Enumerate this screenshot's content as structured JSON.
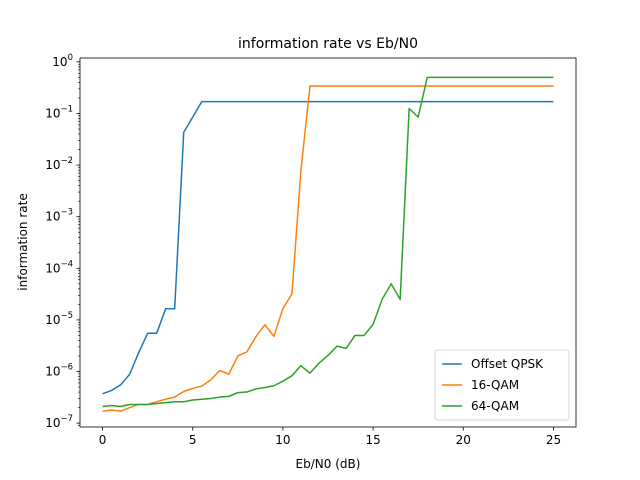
{
  "chart_data": {
    "type": "line",
    "title": "information rate vs Eb/N0",
    "xlabel": "Eb/N0 (dB)",
    "ylabel": "information rate",
    "xlim": [
      -1.25,
      26.25
    ],
    "ylim": [
      1e-07,
      1
    ],
    "yscale": "log",
    "grid": false,
    "legend_position": "bottom-right",
    "x_ticks": [
      0,
      5,
      10,
      15,
      20,
      25
    ],
    "x_tick_labels": [
      "0",
      "5",
      "10",
      "15",
      "20",
      "25"
    ],
    "y_ticks": [
      -7,
      -6,
      -5,
      -4,
      -3,
      -2,
      -1,
      0
    ],
    "y_tick_labels": [
      {
        "base": "10",
        "exp": "−7"
      },
      {
        "base": "10",
        "exp": "−6"
      },
      {
        "base": "10",
        "exp": "−5"
      },
      {
        "base": "10",
        "exp": "−4"
      },
      {
        "base": "10",
        "exp": "−3"
      },
      {
        "base": "10",
        "exp": "−2"
      },
      {
        "base": "10",
        "exp": "−1"
      },
      {
        "base": "10",
        "exp": "0"
      }
    ],
    "series": [
      {
        "name": "Offset QPSK",
        "color": "#1f77b4",
        "x": [
          0,
          0.5,
          1,
          1.5,
          2,
          2.5,
          3,
          3.5,
          4,
          4.5,
          5,
          5.5,
          6,
          6.5,
          7,
          8,
          10,
          12,
          15,
          20,
          25
        ],
        "y": [
          3.7e-07,
          4.3e-07,
          5.5e-07,
          8.8e-07,
          2.3e-06,
          5.5e-06,
          5.5e-06,
          1.65e-05,
          1.65e-05,
          0.043,
          0.085,
          0.17,
          0.17,
          0.17,
          0.17,
          0.17,
          0.17,
          0.17,
          0.17,
          0.17,
          0.17
        ]
      },
      {
        "name": "16-QAM",
        "color": "#ff7f0e",
        "x": [
          0,
          0.5,
          1,
          1.5,
          2,
          2.5,
          3,
          3.5,
          4,
          4.5,
          5,
          5.5,
          6,
          6.5,
          7,
          7.5,
          8,
          8.5,
          9,
          9.5,
          10,
          10.5,
          11,
          11.5,
          12,
          15,
          20,
          25
        ],
        "y": [
          1.7e-07,
          1.8e-07,
          1.7e-07,
          2e-07,
          2.3e-07,
          2.3e-07,
          2.6e-07,
          2.9e-07,
          3.2e-07,
          4.1e-07,
          4.7e-07,
          5.2e-07,
          6.9e-07,
          1.05e-06,
          8.9e-07,
          2e-06,
          2.4e-06,
          4.7e-06,
          8.1e-06,
          4.8e-06,
          1.65e-05,
          3.2e-05,
          0.008,
          0.34,
          0.34,
          0.34,
          0.34,
          0.34
        ]
      },
      {
        "name": "64-QAM",
        "color": "#2ca02c",
        "x": [
          0,
          0.5,
          1,
          1.5,
          2,
          2.5,
          3,
          3.5,
          4,
          4.5,
          5,
          5.5,
          6,
          6.5,
          7,
          7.5,
          8,
          8.5,
          9,
          9.5,
          10,
          10.5,
          11,
          11.5,
          12,
          12.5,
          13,
          13.5,
          14,
          14.5,
          15,
          15.5,
          16,
          16.5,
          17,
          17.5,
          18,
          20,
          25
        ],
        "y": [
          2.1e-07,
          2.2e-07,
          2.1e-07,
          2.3e-07,
          2.3e-07,
          2.3e-07,
          2.4e-07,
          2.5e-07,
          2.6e-07,
          2.6e-07,
          2.8e-07,
          2.9e-07,
          3e-07,
          3.2e-07,
          3.3e-07,
          3.9e-07,
          4e-07,
          4.6e-07,
          4.9e-07,
          5.3e-07,
          6.5e-07,
          8.3e-07,
          1.3e-06,
          9.3e-07,
          1.45e-06,
          2.05e-06,
          3.1e-06,
          2.8e-06,
          5e-06,
          5e-06,
          8.2e-06,
          2.5e-05,
          5e-05,
          2.5e-05,
          0.125,
          0.085,
          0.5,
          0.5,
          0.5
        ]
      }
    ]
  }
}
